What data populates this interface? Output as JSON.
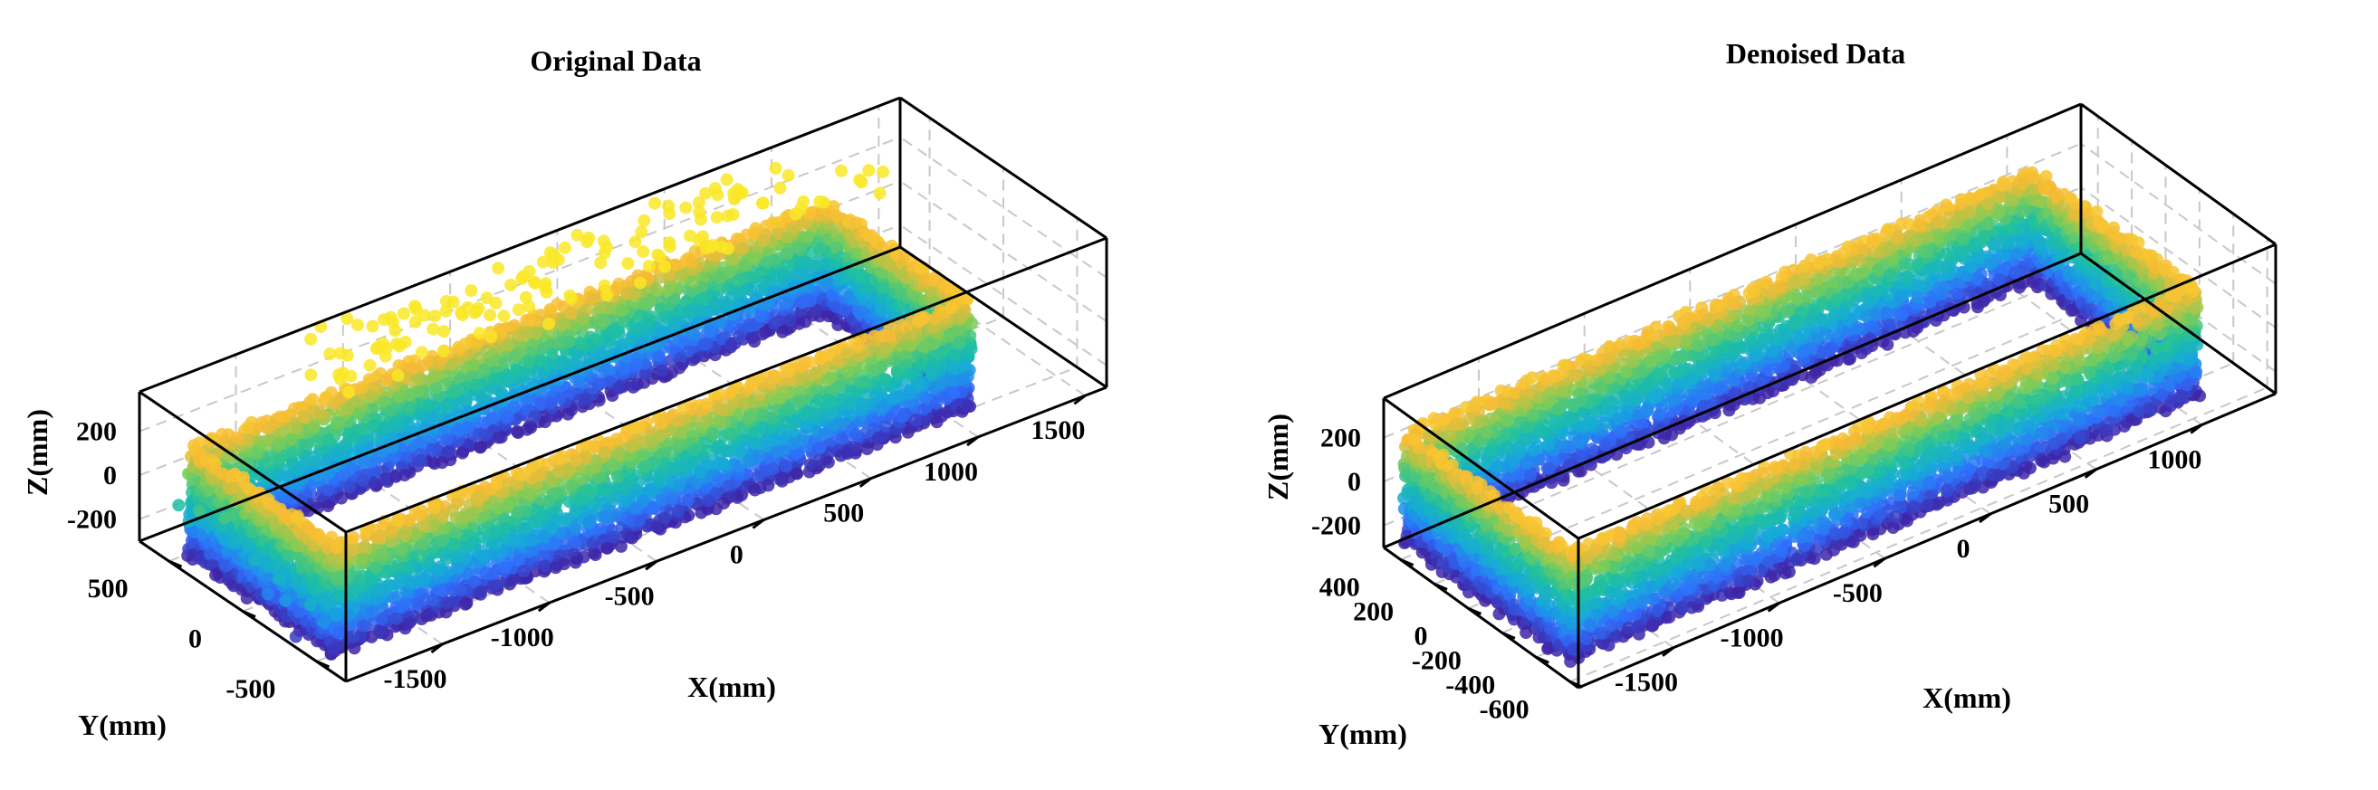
{
  "chart_data": [
    {
      "type": "scatter3d",
      "title": "Original Data",
      "xlabel": "X(mm)",
      "ylabel": "Y(mm)",
      "zlabel": "Z(mm)",
      "xticks": [
        "-1500",
        "-1000",
        "-500",
        "0",
        "500",
        "1000",
        "1500"
      ],
      "xtick_values": [
        -1500,
        -1000,
        -500,
        0,
        500,
        1000,
        1500
      ],
      "yticks": [
        "500",
        "0",
        "-500"
      ],
      "ytick_values": [
        500,
        0,
        -500
      ],
      "zticks": [
        "200",
        "0",
        "-200"
      ],
      "ztick_values": [
        200,
        0,
        -200
      ],
      "xlim": [
        -1950,
        1600
      ],
      "ylim": [
        -700,
        700
      ],
      "zlim": [
        -300,
        380
      ],
      "grid": true,
      "colormap": "parula (height-coloured)",
      "colormap_colors": [
        "#3e26a8",
        "#2f6efc",
        "#16a9da",
        "#1ec0a0",
        "#7bcc58",
        "#f6ba35",
        "#f9e726"
      ],
      "cloud_shape": "rectangular ring (hull outline)",
      "ring_extent_x": [
        -1850,
        1100
      ],
      "ring_extent_y": [
        -480,
        480
      ],
      "ring_z_range": [
        -300,
        180
      ],
      "noise": "sparse outlier points scattered above and around the ring"
    },
    {
      "type": "scatter3d",
      "title": "Denoised Data",
      "xlabel": "X(mm)",
      "ylabel": "Y(mm)",
      "zlabel": "Z(mm)",
      "xticks": [
        "-1500",
        "-1000",
        "-500",
        "0",
        "500",
        "1000"
      ],
      "xtick_values": [
        -1500,
        -1000,
        -500,
        0,
        500,
        1000
      ],
      "yticks": [
        "400",
        "200",
        "0",
        "-200",
        "-400",
        "-600"
      ],
      "ytick_values": [
        400,
        200,
        0,
        -200,
        -400,
        -600
      ],
      "zticks": [
        "200",
        "0",
        "-200"
      ],
      "ztick_values": [
        200,
        0,
        -200
      ],
      "xlim": [
        -1950,
        1350
      ],
      "ylim": [
        -650,
        500
      ],
      "zlim": [
        -300,
        380
      ],
      "grid": true,
      "colormap": "parula (height-coloured)",
      "colormap_colors": [
        "#3e26a8",
        "#2f6efc",
        "#16a9da",
        "#1ec0a0",
        "#7bcc58",
        "#f6ba35",
        "#f9e726"
      ],
      "cloud_shape": "rectangular ring (hull outline)",
      "ring_extent_x": [
        -1850,
        1100
      ],
      "ring_extent_y": [
        -480,
        480
      ],
      "ring_z_range": [
        -300,
        180
      ],
      "noise": "none"
    }
  ]
}
